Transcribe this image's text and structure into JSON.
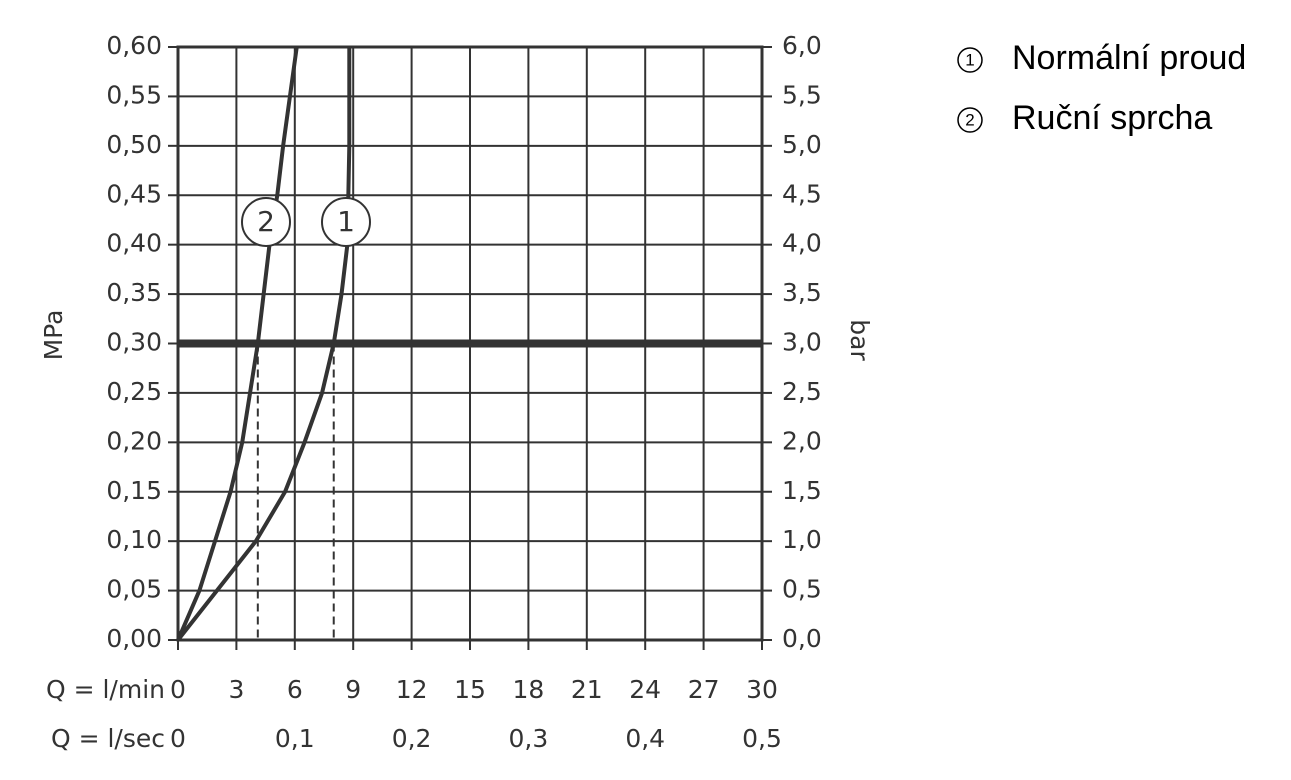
{
  "chart_data": {
    "type": "line",
    "x_label": "Q = l/min",
    "x2_label": "Q = l/sec",
    "y_label": "MPa",
    "y2_label": "bar",
    "xlim": [
      0,
      30
    ],
    "xticks": [
      0,
      3,
      6,
      9,
      12,
      15,
      18,
      21,
      24,
      27,
      30
    ],
    "x2lim": [
      0,
      0.5
    ],
    "x2ticks": [
      0,
      {
        "value": 0.1,
        "label": "0,1"
      },
      {
        "value": 0.2,
        "label": "0,2"
      },
      {
        "value": 0.3,
        "label": "0,3"
      },
      {
        "value": 0.4,
        "label": "0,4"
      },
      {
        "value": 0.5,
        "label": "0,5"
      }
    ],
    "ylim": [
      0,
      0.6
    ],
    "yticks": [
      {
        "value": 0,
        "label": "0,00"
      },
      {
        "value": 0.05,
        "label": "0,05"
      },
      {
        "value": 0.1,
        "label": "0,10"
      },
      {
        "value": 0.15,
        "label": "0,15"
      },
      {
        "value": 0.2,
        "label": "0,20"
      },
      {
        "value": 0.25,
        "label": "0,25"
      },
      {
        "value": 0.3,
        "label": "0,30"
      },
      {
        "value": 0.35,
        "label": "0,35"
      },
      {
        "value": 0.4,
        "label": "0,40"
      },
      {
        "value": 0.45,
        "label": "0,45"
      },
      {
        "value": 0.5,
        "label": "0,50"
      },
      {
        "value": 0.55,
        "label": "0,55"
      },
      {
        "value": 0.6,
        "label": "0,60"
      }
    ],
    "y2lim": [
      0,
      6
    ],
    "y2ticks": [
      {
        "value": 0,
        "label": "0,0"
      },
      {
        "value": 0.5,
        "label": "0,5"
      },
      {
        "value": 1,
        "label": "1,0"
      },
      {
        "value": 1.5,
        "label": "1,5"
      },
      {
        "value": 2,
        "label": "2,0"
      },
      {
        "value": 2.5,
        "label": "2,5"
      },
      {
        "value": 3,
        "label": "3,0"
      },
      {
        "value": 3.5,
        "label": "3,5"
      },
      {
        "value": 4,
        "label": "4,0"
      },
      {
        "value": 4.5,
        "label": "4,5"
      },
      {
        "value": 5,
        "label": "5,0"
      },
      {
        "value": 5.5,
        "label": "5,5"
      },
      {
        "value": 6,
        "label": "6,0"
      }
    ],
    "grid": true,
    "color": "#333333",
    "reference_y": 0.3,
    "reference_x": [
      4.1,
      8.0
    ],
    "series": [
      {
        "name": "Normální proud",
        "label": "1",
        "color": "#333333",
        "x": [
          0,
          4.0,
          5.5,
          6.5,
          7.4,
          8.0,
          8.4,
          8.7,
          8.75,
          8.8,
          8.8
        ],
        "values": [
          0,
          0.1,
          0.15,
          0.2,
          0.25,
          0.3,
          0.35,
          0.4,
          0.45,
          0.5,
          0.6
        ]
      },
      {
        "name": "Ruční sprcha",
        "label": "2",
        "color": "#333333",
        "x": [
          0,
          1.1,
          1.9,
          2.7,
          3.3,
          3.7,
          4.1,
          4.7,
          5.1,
          5.4,
          6.1
        ],
        "values": [
          0,
          0.05,
          0.1,
          0.15,
          0.2,
          0.25,
          0.3,
          0.4,
          0.45,
          0.5,
          0.6
        ]
      }
    ],
    "legend": "top-right"
  }
}
